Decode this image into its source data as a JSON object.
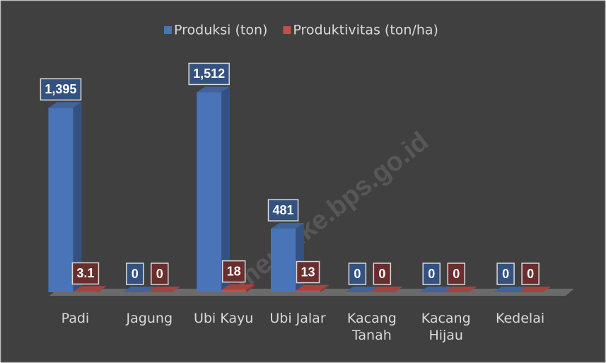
{
  "chart_data": {
    "type": "bar3d",
    "categories": [
      "Padi",
      "Jagung",
      "Ubi Kayu",
      "Ubi Jalar",
      "Kacang Tanah",
      "Kacang Hijau",
      "Kedelai"
    ],
    "series": [
      {
        "name": "Produksi (ton)",
        "color": "#4a74b8",
        "values": [
          1395,
          0,
          1512,
          481,
          0,
          0,
          0
        ],
        "value_labels": [
          "1,395",
          "0",
          "1,512",
          "481",
          "0",
          "0",
          "0"
        ]
      },
      {
        "name": "Produktivitas (ton/ha)",
        "color": "#c0504d",
        "values": [
          3.1,
          0,
          18,
          13,
          0,
          0,
          0
        ]
      }
    ],
    "ylim": [
      0,
      1600
    ],
    "legend": "top",
    "watermark": "merauke.bps.go.id"
  }
}
